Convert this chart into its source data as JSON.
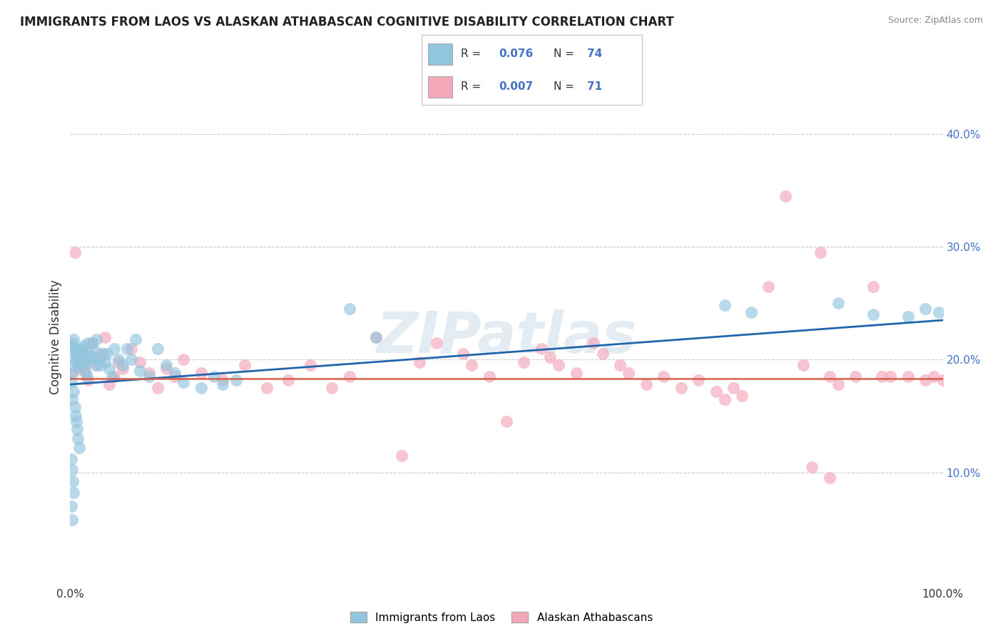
{
  "title": "IMMIGRANTS FROM LAOS VS ALASKAN ATHABASCAN COGNITIVE DISABILITY CORRELATION CHART",
  "source": "Source: ZipAtlas.com",
  "ylabel": "Cognitive Disability",
  "right_yticks": [
    "10.0%",
    "20.0%",
    "30.0%",
    "40.0%"
  ],
  "right_ytick_vals": [
    0.1,
    0.2,
    0.3,
    0.4
  ],
  "legend_label_blue": "Immigrants from Laos",
  "legend_label_pink": "Alaskan Athabascans",
  "blue_color": "#92c5de",
  "pink_color": "#f4a7b9",
  "blue_line_color": "#2166ac",
  "pink_line_color": "#d6604d",
  "watermark": "ZIPatlas",
  "blue_points": [
    [
      0.001,
      0.21
    ],
    [
      0.002,
      0.215
    ],
    [
      0.003,
      0.212
    ],
    [
      0.004,
      0.218
    ],
    [
      0.005,
      0.2
    ],
    [
      0.006,
      0.205
    ],
    [
      0.007,
      0.208
    ],
    [
      0.008,
      0.202
    ],
    [
      0.009,
      0.195
    ],
    [
      0.01,
      0.208
    ],
    [
      0.011,
      0.195
    ],
    [
      0.012,
      0.2
    ],
    [
      0.013,
      0.21
    ],
    [
      0.014,
      0.205
    ],
    [
      0.015,
      0.212
    ],
    [
      0.016,
      0.198
    ],
    [
      0.017,
      0.19
    ],
    [
      0.018,
      0.2
    ],
    [
      0.019,
      0.185
    ],
    [
      0.02,
      0.215
    ],
    [
      0.022,
      0.205
    ],
    [
      0.025,
      0.215
    ],
    [
      0.028,
      0.208
    ],
    [
      0.03,
      0.218
    ],
    [
      0.032,
      0.2
    ],
    [
      0.035,
      0.195
    ],
    [
      0.038,
      0.205
    ],
    [
      0.04,
      0.198
    ],
    [
      0.042,
      0.205
    ],
    [
      0.045,
      0.192
    ],
    [
      0.048,
      0.185
    ],
    [
      0.05,
      0.21
    ],
    [
      0.055,
      0.2
    ],
    [
      0.06,
      0.195
    ],
    [
      0.065,
      0.21
    ],
    [
      0.07,
      0.2
    ],
    [
      0.075,
      0.218
    ],
    [
      0.002,
      0.195
    ],
    [
      0.003,
      0.188
    ],
    [
      0.001,
      0.18
    ],
    [
      0.004,
      0.172
    ],
    [
      0.002,
      0.165
    ],
    [
      0.005,
      0.158
    ],
    [
      0.006,
      0.15
    ],
    [
      0.007,
      0.145
    ],
    [
      0.008,
      0.138
    ],
    [
      0.009,
      0.13
    ],
    [
      0.01,
      0.122
    ],
    [
      0.001,
      0.112
    ],
    [
      0.002,
      0.102
    ],
    [
      0.003,
      0.092
    ],
    [
      0.004,
      0.082
    ],
    [
      0.001,
      0.07
    ],
    [
      0.002,
      0.058
    ],
    [
      0.08,
      0.19
    ],
    [
      0.09,
      0.185
    ],
    [
      0.1,
      0.21
    ],
    [
      0.11,
      0.195
    ],
    [
      0.12,
      0.188
    ],
    [
      0.13,
      0.18
    ],
    [
      0.15,
      0.175
    ],
    [
      0.165,
      0.185
    ],
    [
      0.175,
      0.178
    ],
    [
      0.19,
      0.182
    ],
    [
      0.32,
      0.245
    ],
    [
      0.35,
      0.22
    ],
    [
      0.75,
      0.248
    ],
    [
      0.78,
      0.242
    ],
    [
      0.88,
      0.25
    ],
    [
      0.92,
      0.24
    ],
    [
      0.96,
      0.238
    ],
    [
      0.98,
      0.245
    ],
    [
      0.995,
      0.242
    ],
    [
      0.015,
      0.205
    ],
    [
      0.02,
      0.198
    ],
    [
      0.025,
      0.202
    ],
    [
      0.03,
      0.195
    ]
  ],
  "pink_points": [
    [
      0.001,
      0.188
    ],
    [
      0.005,
      0.295
    ],
    [
      0.01,
      0.192
    ],
    [
      0.012,
      0.202
    ],
    [
      0.015,
      0.195
    ],
    [
      0.018,
      0.188
    ],
    [
      0.02,
      0.182
    ],
    [
      0.025,
      0.215
    ],
    [
      0.03,
      0.195
    ],
    [
      0.035,
      0.205
    ],
    [
      0.04,
      0.22
    ],
    [
      0.045,
      0.178
    ],
    [
      0.05,
      0.185
    ],
    [
      0.055,
      0.198
    ],
    [
      0.06,
      0.192
    ],
    [
      0.07,
      0.21
    ],
    [
      0.08,
      0.198
    ],
    [
      0.09,
      0.188
    ],
    [
      0.1,
      0.175
    ],
    [
      0.11,
      0.192
    ],
    [
      0.12,
      0.185
    ],
    [
      0.13,
      0.2
    ],
    [
      0.15,
      0.188
    ],
    [
      0.175,
      0.182
    ],
    [
      0.2,
      0.195
    ],
    [
      0.225,
      0.175
    ],
    [
      0.25,
      0.182
    ],
    [
      0.275,
      0.195
    ],
    [
      0.3,
      0.175
    ],
    [
      0.32,
      0.185
    ],
    [
      0.35,
      0.22
    ],
    [
      0.38,
      0.115
    ],
    [
      0.4,
      0.198
    ],
    [
      0.42,
      0.215
    ],
    [
      0.45,
      0.205
    ],
    [
      0.46,
      0.195
    ],
    [
      0.48,
      0.185
    ],
    [
      0.5,
      0.145
    ],
    [
      0.52,
      0.198
    ],
    [
      0.54,
      0.21
    ],
    [
      0.55,
      0.202
    ],
    [
      0.56,
      0.195
    ],
    [
      0.58,
      0.188
    ],
    [
      0.6,
      0.215
    ],
    [
      0.61,
      0.205
    ],
    [
      0.63,
      0.195
    ],
    [
      0.64,
      0.188
    ],
    [
      0.66,
      0.178
    ],
    [
      0.68,
      0.185
    ],
    [
      0.7,
      0.175
    ],
    [
      0.72,
      0.182
    ],
    [
      0.74,
      0.172
    ],
    [
      0.75,
      0.165
    ],
    [
      0.76,
      0.175
    ],
    [
      0.77,
      0.168
    ],
    [
      0.8,
      0.265
    ],
    [
      0.82,
      0.345
    ],
    [
      0.84,
      0.195
    ],
    [
      0.86,
      0.295
    ],
    [
      0.87,
      0.185
    ],
    [
      0.88,
      0.178
    ],
    [
      0.9,
      0.185
    ],
    [
      0.92,
      0.265
    ],
    [
      0.93,
      0.185
    ],
    [
      0.94,
      0.185
    ],
    [
      0.96,
      0.185
    ],
    [
      0.98,
      0.182
    ],
    [
      0.99,
      0.185
    ],
    [
      1.0,
      0.182
    ],
    [
      0.85,
      0.105
    ],
    [
      0.87,
      0.095
    ]
  ],
  "blue_trend": [
    0.0,
    0.178,
    1.0,
    0.235
  ],
  "pink_trend": [
    0.0,
    0.183,
    1.0,
    0.183
  ],
  "xlim": [
    0.0,
    1.0
  ],
  "ylim": [
    0.0,
    0.44
  ],
  "figsize": [
    14.06,
    8.92
  ],
  "dpi": 100
}
